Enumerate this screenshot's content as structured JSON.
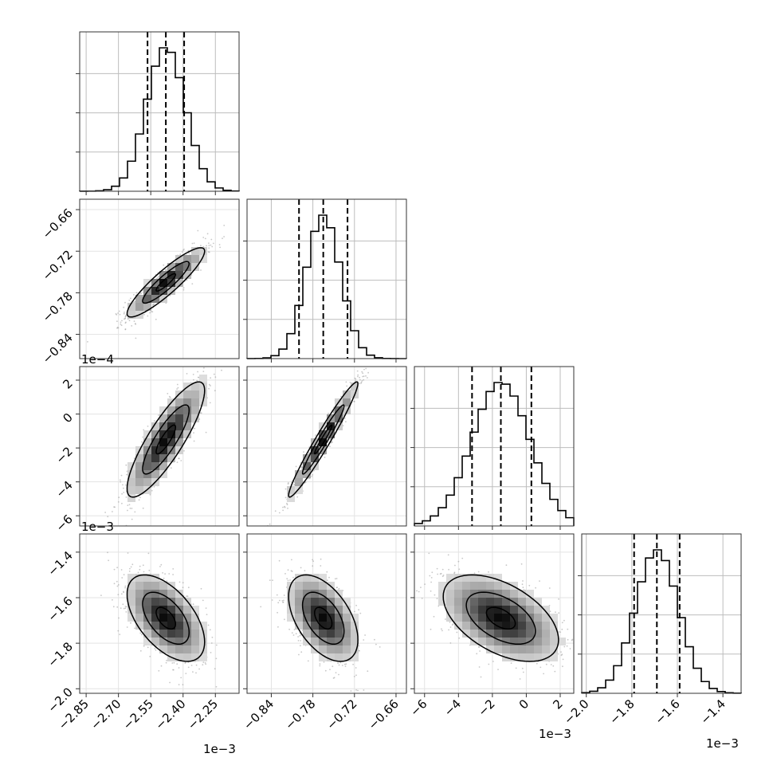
{
  "chart_data": {
    "type": "corner",
    "grid": true,
    "colors": {
      "ink": "#000000",
      "grid": "#bdbdbd",
      "frame": "#333333"
    },
    "parameters": [
      {
        "range": [
          -2.88,
          -2.14
        ],
        "center": -2.48,
        "sigma": 0.09,
        "quantiles": [
          -2.565,
          -2.48,
          -2.395
        ],
        "ticks": [
          -2.85,
          -2.7,
          -2.55,
          -2.4,
          -2.25
        ],
        "tick_labels": [
          "−2.85",
          "−2.70",
          "−2.55",
          "−2.40",
          "−2.25"
        ],
        "offset_label": "1e−3"
      },
      {
        "range": [
          -0.875,
          -0.645
        ],
        "center": -0.765,
        "sigma": 0.025,
        "quantiles": [
          -0.8,
          -0.765,
          -0.73
        ],
        "ticks": [
          -0.84,
          -0.78,
          -0.72,
          -0.66
        ],
        "tick_labels": [
          "−0.84",
          "−0.78",
          "−0.72",
          "−0.66"
        ],
        "offset_label": "1e−4"
      },
      {
        "range": [
          -6.6,
          2.8
        ],
        "center": -1.5,
        "sigma": 1.7,
        "quantiles": [
          -3.2,
          -1.5,
          0.3
        ],
        "ticks": [
          -6,
          -4,
          -2,
          0,
          2
        ],
        "tick_labels": [
          "−6",
          "−4",
          "−2",
          "0",
          "2"
        ],
        "offset_label": "1e−3"
      },
      {
        "range": [
          -2.02,
          -1.32
        ],
        "center": -1.69,
        "sigma": 0.095,
        "quantiles": [
          -1.79,
          -1.69,
          -1.59
        ],
        "ticks": [
          -2.0,
          -1.8,
          -1.6,
          -1.4
        ],
        "tick_labels": [
          "−2.0",
          "−1.8",
          "−1.6",
          "−1.4"
        ],
        "offset_label": "1e−3"
      }
    ],
    "correlations": {
      "1-0": 0.9,
      "2-0": 0.85,
      "2-1": 0.97,
      "3-0": -0.55,
      "3-1": -0.5,
      "3-2": -0.5
    },
    "contour_levels": [
      1,
      2,
      3
    ]
  }
}
